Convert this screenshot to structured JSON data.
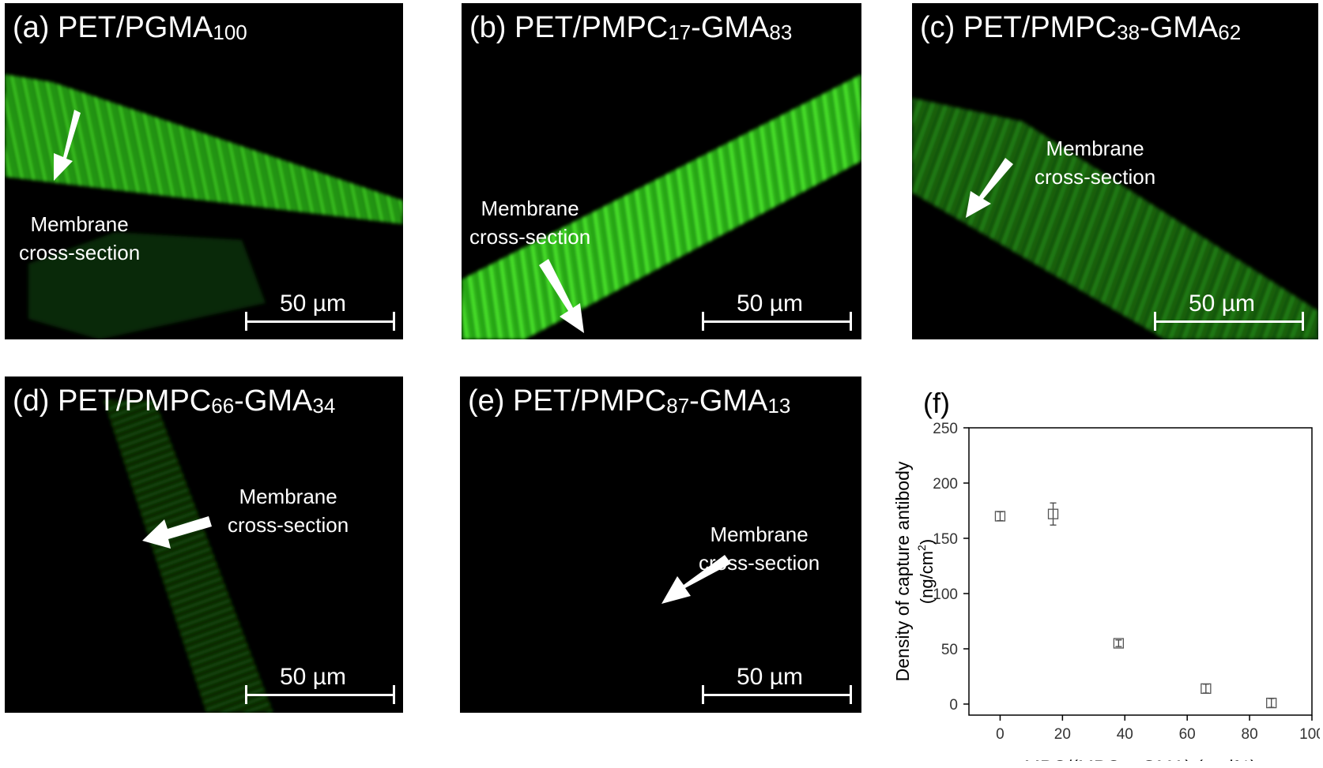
{
  "panels": [
    {
      "id": "a",
      "prefix": "(a) PET/PGMA",
      "sub1": "100",
      "mid": "",
      "sub2": "",
      "annotation": [
        "Membrane",
        "cross-section"
      ],
      "scale": "50 µm"
    },
    {
      "id": "b",
      "prefix": "(b) PET/PMPC",
      "sub1": "17",
      "mid": "-GMA",
      "sub2": "83",
      "annotation": [
        "Membrane",
        "cross-section"
      ],
      "scale": "50 µm"
    },
    {
      "id": "c",
      "prefix": "(c) PET/PMPC",
      "sub1": "38",
      "mid": "-GMA",
      "sub2": "62",
      "annotation": [
        "Membrane",
        "cross-section"
      ],
      "scale": "50 µm"
    },
    {
      "id": "d",
      "prefix": "(d) PET/PMPC",
      "sub1": "66",
      "mid": "-GMA",
      "sub2": "34",
      "annotation": [
        "Membrane",
        "cross-section"
      ],
      "scale": "50 µm"
    },
    {
      "id": "e",
      "prefix": "(e) PET/PMPC",
      "sub1": "87",
      "mid": "-GMA",
      "sub2": "13",
      "annotation": [
        "Membrane",
        "cross-section"
      ],
      "scale": "50 µm"
    }
  ],
  "chart_label": "(f)",
  "chart_data": {
    "type": "scatter",
    "xlabel": "MPC/(MPC + GMA) (mol%)",
    "ylabel_line1": "Density of capture antibody",
    "ylabel_line2_pre": "(ng/cm",
    "ylabel_line2_sup": "2",
    "ylabel_line2_post": ")",
    "xlim": [
      -10,
      100
    ],
    "ylim": [
      -10,
      250
    ],
    "xticks": [
      0,
      20,
      40,
      60,
      80,
      100
    ],
    "yticks": [
      0,
      50,
      100,
      150,
      200,
      250
    ],
    "marker": "open-square",
    "points": [
      {
        "x": 0,
        "y": 170,
        "err": 4
      },
      {
        "x": 17,
        "y": 172,
        "err": 10
      },
      {
        "x": 38,
        "y": 55,
        "err": 3
      },
      {
        "x": 66,
        "y": 14,
        "err": 4
      },
      {
        "x": 87,
        "y": 1,
        "err": 4
      }
    ]
  }
}
